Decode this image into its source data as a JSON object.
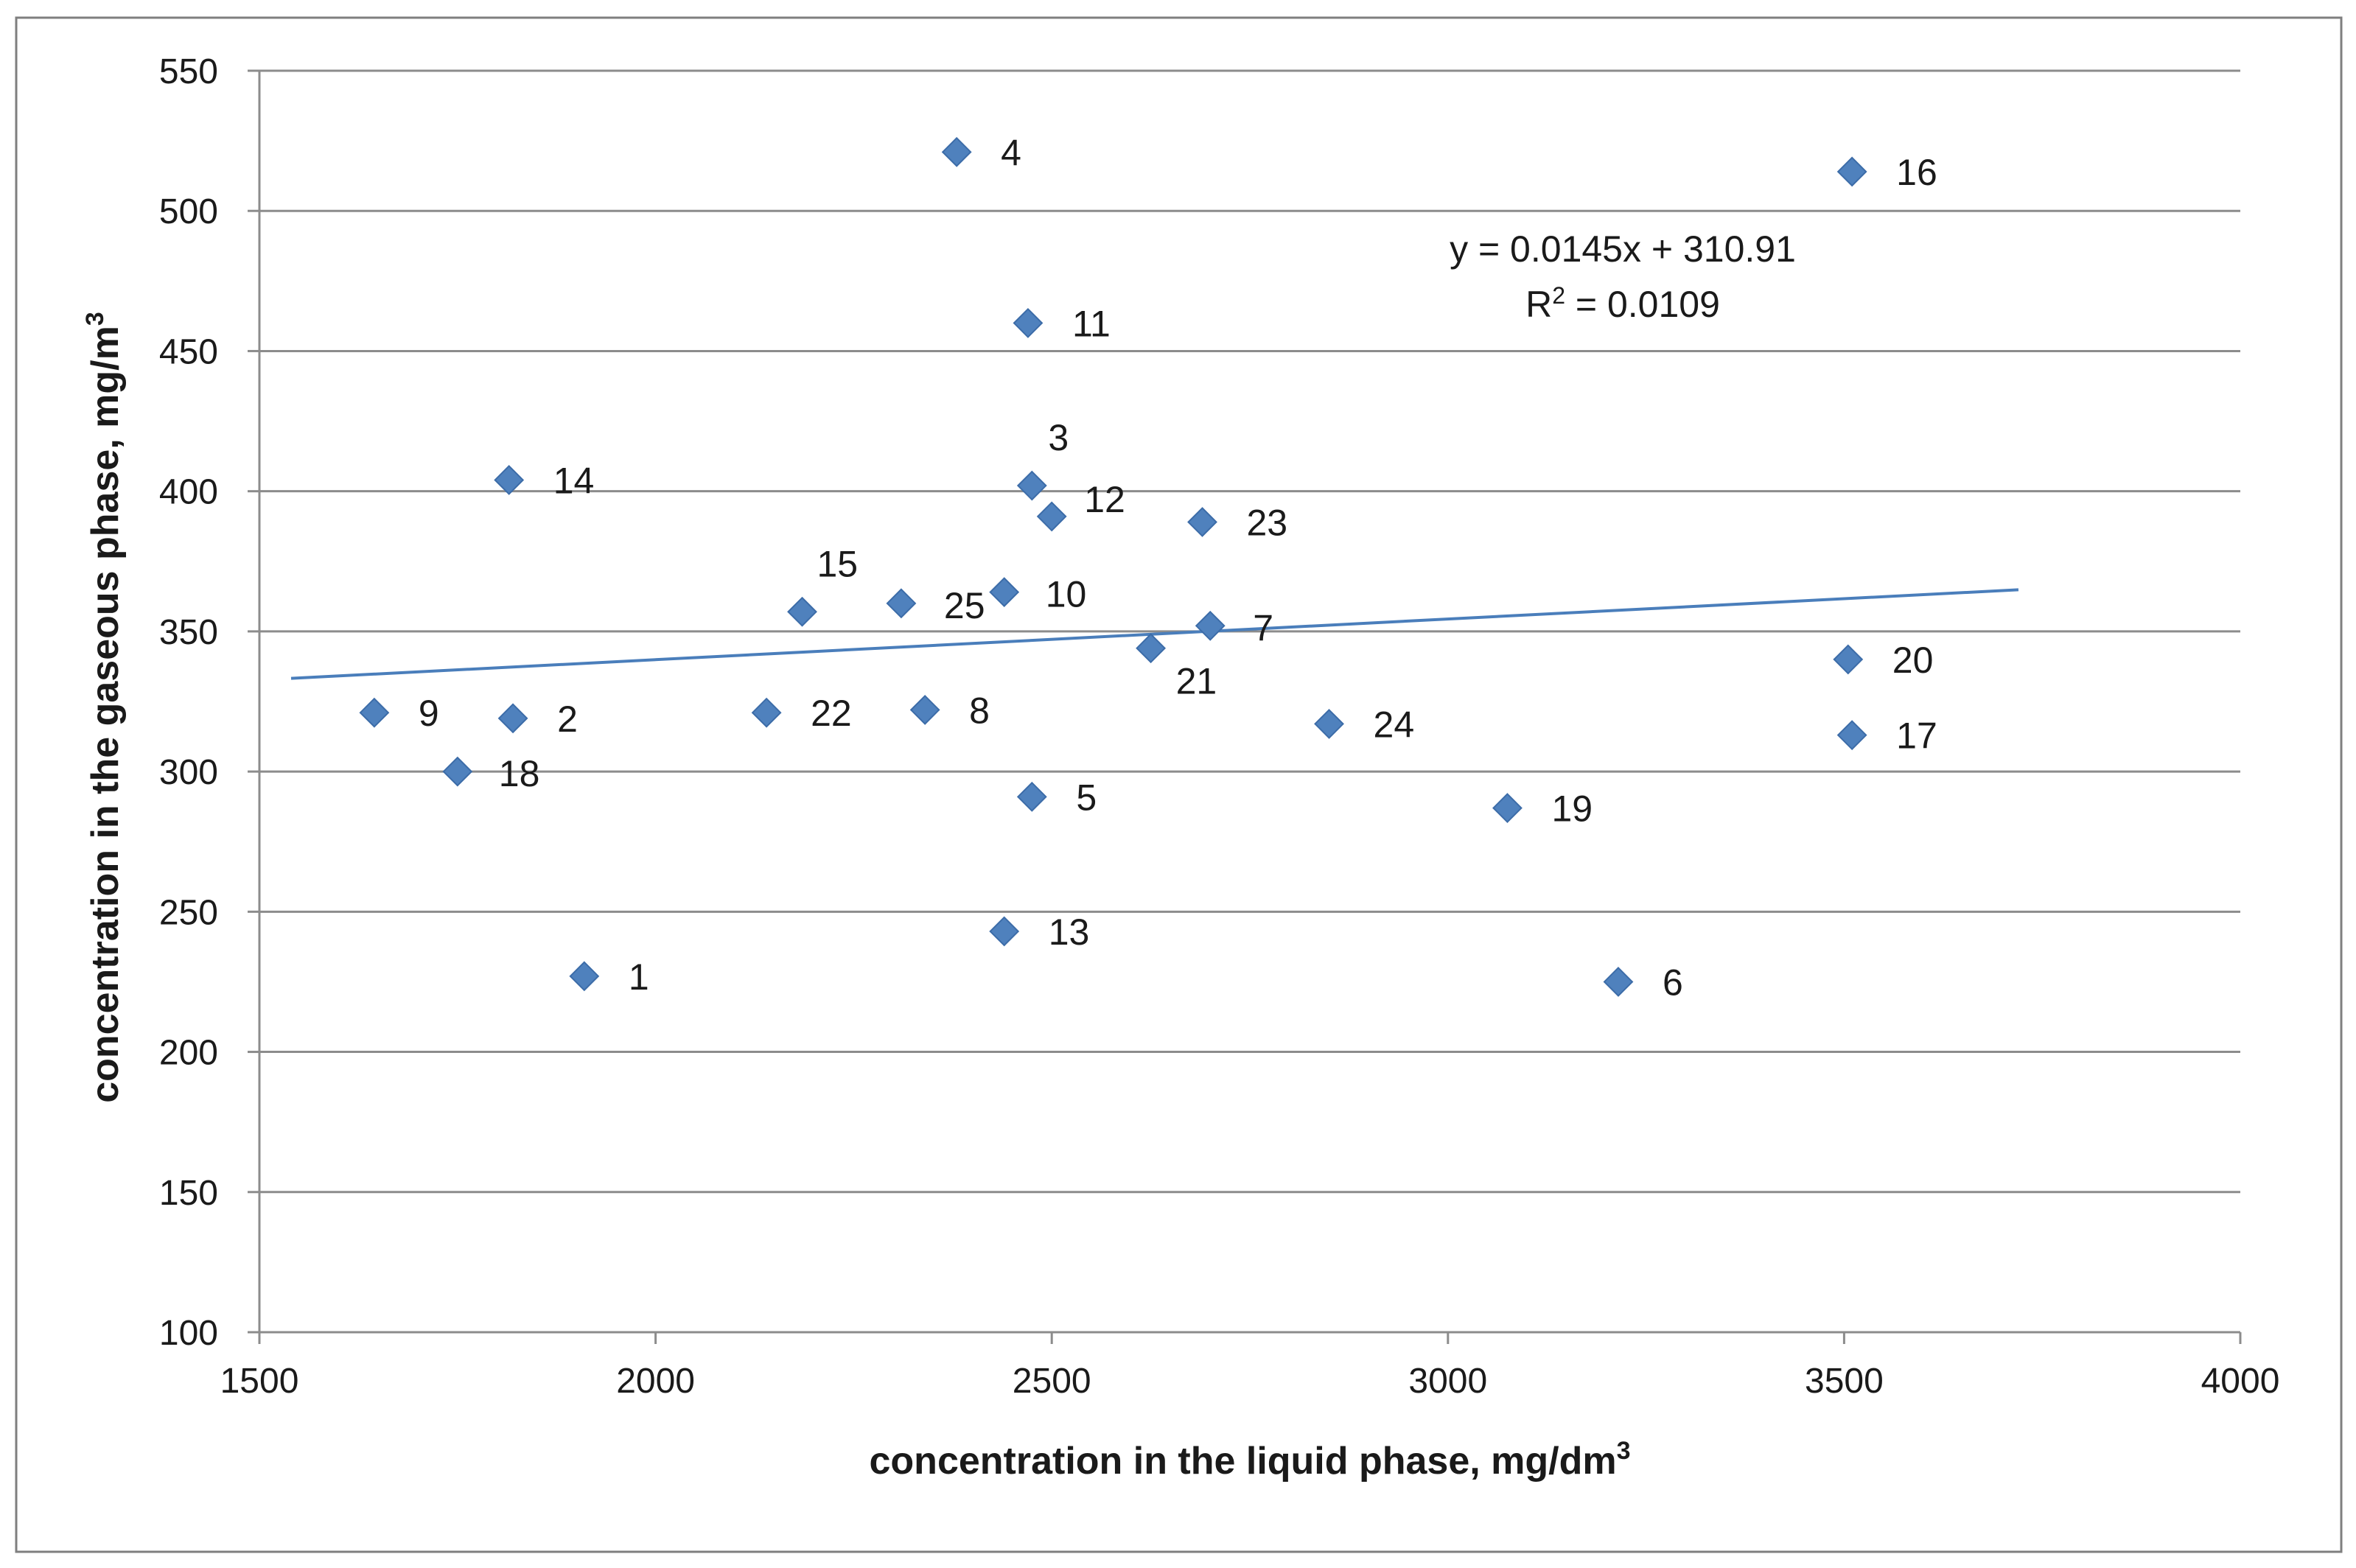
{
  "chart_data": {
    "type": "scatter",
    "title": "",
    "xlabel": "concentration in the liquid phase, mg/dm",
    "xlabel_sup": "3",
    "ylabel": "concentration in the gaseous phase, mg/m",
    "ylabel_sup": "3",
    "xlim": [
      1500,
      4000
    ],
    "ylim": [
      100,
      550
    ],
    "xticks": [
      1500,
      2000,
      2500,
      3000,
      3500,
      4000
    ],
    "yticks": [
      100,
      150,
      200,
      250,
      300,
      350,
      400,
      450,
      500,
      550
    ],
    "grid": "horizontal",
    "marker_color": "#4f81bd",
    "trendline_color": "#4a7ebb",
    "points": [
      {
        "label": "1",
        "x": 1910,
        "y": 227
      },
      {
        "label": "2",
        "x": 1820,
        "y": 319
      },
      {
        "label": "3",
        "x": 2475,
        "y": 402
      },
      {
        "label": "4",
        "x": 2380,
        "y": 521
      },
      {
        "label": "5",
        "x": 2475,
        "y": 291
      },
      {
        "label": "6",
        "x": 3215,
        "y": 225
      },
      {
        "label": "7",
        "x": 2700,
        "y": 352
      },
      {
        "label": "8",
        "x": 2340,
        "y": 322
      },
      {
        "label": "9",
        "x": 1645,
        "y": 321
      },
      {
        "label": "10",
        "x": 2440,
        "y": 364
      },
      {
        "label": "11",
        "x": 2470,
        "y": 460
      },
      {
        "label": "12",
        "x": 2500,
        "y": 391
      },
      {
        "label": "13",
        "x": 2440,
        "y": 243
      },
      {
        "label": "14",
        "x": 1815,
        "y": 404
      },
      {
        "label": "15",
        "x": 2185,
        "y": 357
      },
      {
        "label": "16",
        "x": 3510,
        "y": 514
      },
      {
        "label": "17",
        "x": 3510,
        "y": 313
      },
      {
        "label": "18",
        "x": 1750,
        "y": 300
      },
      {
        "label": "19",
        "x": 3075,
        "y": 287
      },
      {
        "label": "20",
        "x": 3505,
        "y": 340
      },
      {
        "label": "21",
        "x": 2625,
        "y": 344
      },
      {
        "label": "22",
        "x": 2140,
        "y": 321
      },
      {
        "label": "23",
        "x": 2690,
        "y": 389
      },
      {
        "label": "24",
        "x": 2850,
        "y": 317
      },
      {
        "label": "25",
        "x": 2310,
        "y": 360
      }
    ],
    "trendline": {
      "slope": 0.0145,
      "intercept": 310.91,
      "x_range": [
        1540,
        3720
      ],
      "equation": "y = 0.0145x + 310.91",
      "r2_prefix": "R",
      "r2_sup": "2",
      "r2_value": " = 0.0109"
    }
  }
}
